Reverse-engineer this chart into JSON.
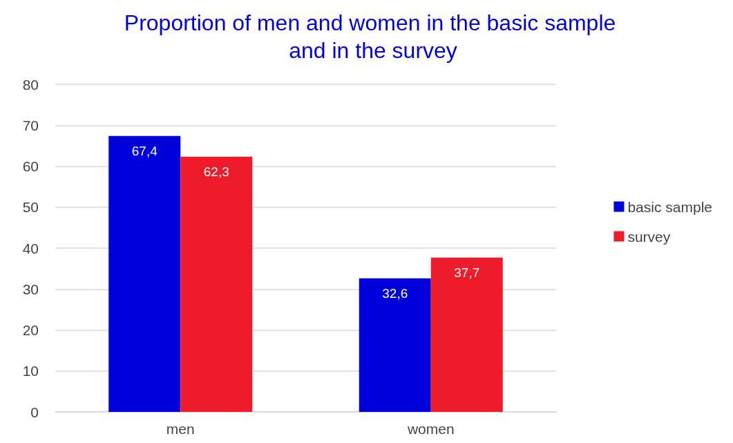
{
  "chart_data": {
    "type": "bar",
    "title": "Proportion of men and women in the basic sample and in the survey",
    "categories": [
      "men",
      "women"
    ],
    "series": [
      {
        "name": "basic sample",
        "color": "#0000dd",
        "values": [
          67.4,
          32.6
        ],
        "value_labels": [
          "67,4",
          "32,6"
        ]
      },
      {
        "name": "survey",
        "color": "#ee1c2a",
        "values": [
          62.3,
          37.7
        ],
        "value_labels": [
          "62,3",
          "37,7"
        ]
      }
    ],
    "ylim": [
      0,
      80
    ],
    "yticks": [
      0,
      10,
      20,
      30,
      40,
      50,
      60,
      70,
      80
    ],
    "grid": "y",
    "legend": "right"
  }
}
